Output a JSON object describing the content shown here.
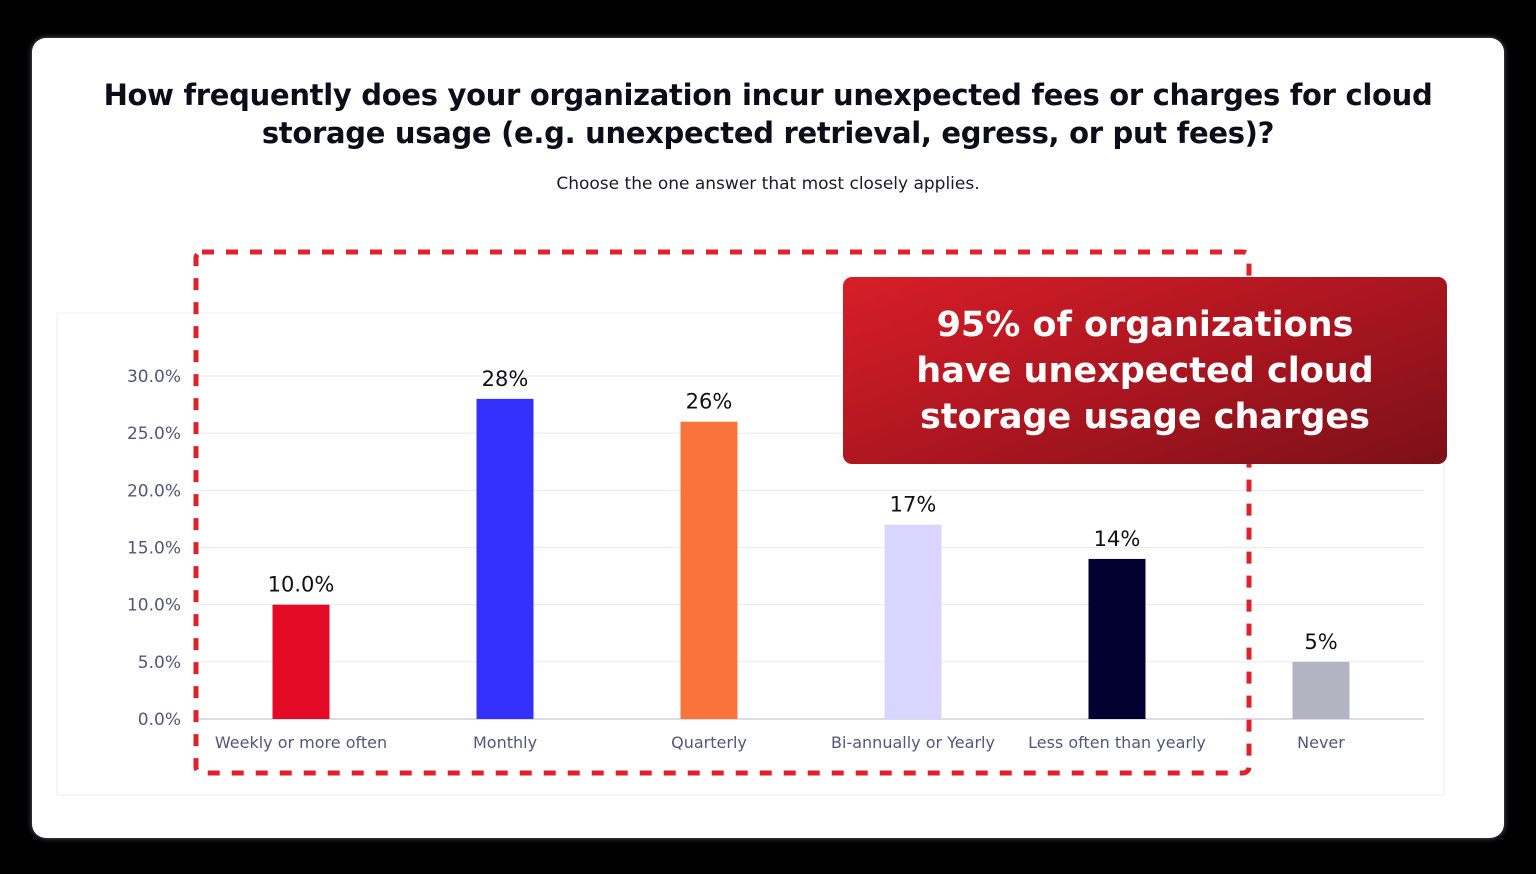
{
  "title": "How frequently does your organization incur unexpected fees or charges for cloud storage usage (e.g. unexpected retrieval, egress, or put fees)?",
  "subtitle": "Choose the one answer that most closely applies.",
  "callout": {
    "text": "95% of organizations have unexpected cloud storage usage charges"
  },
  "colors": {
    "highlight_border": "#e0202a",
    "callout_start": "#d81e28",
    "callout_end": "#7c1018"
  },
  "chart_data": {
    "type": "bar",
    "title": "How frequently does your organization incur unexpected fees or charges for cloud storage usage (e.g. unexpected retrieval, egress, or put fees)?",
    "categories": [
      "Weekly or more often",
      "Monthly",
      "Quarterly",
      "Bi-annually or Yearly",
      "Less often than yearly",
      "Never"
    ],
    "values": [
      10.0,
      28,
      26,
      17,
      14,
      5
    ],
    "data_labels": [
      "10.0%",
      "28%",
      "26%",
      "17%",
      "14%",
      "5%"
    ],
    "bar_colors": [
      "#e20a24",
      "#3430fd",
      "#f8743a",
      "#d8d6fe",
      "#020230",
      "#b3b3c2"
    ],
    "yticks": [
      "0.0%",
      "5.0%",
      "10.0%",
      "15.0%",
      "20.0%",
      "25.0%",
      "30.0%"
    ],
    "ylim": [
      0,
      30
    ],
    "grid": true,
    "xlabel": "",
    "ylabel": ""
  }
}
